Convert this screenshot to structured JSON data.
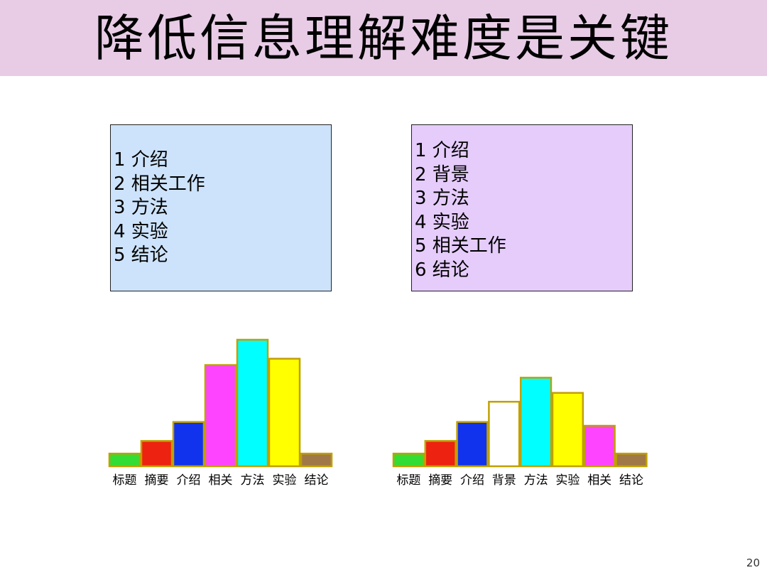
{
  "slide": {
    "title": "降低信息理解难度是关键",
    "title_bg": "#e8cce6",
    "page_number": "20"
  },
  "left_box": {
    "bg": "#cde3fb",
    "items": [
      "1 介绍",
      "2 相关工作",
      "3 方法",
      "4 实验",
      "5 结论"
    ]
  },
  "right_box": {
    "bg": "#e5ccfb",
    "items": [
      "1 介绍",
      "2 背景",
      "3 方法",
      "4 实验",
      "5 相关工作",
      "6 结论"
    ]
  },
  "chart_data": [
    {
      "type": "bar",
      "categories": [
        "标题",
        "摘要",
        "介绍",
        "相关",
        "方法",
        "实验",
        "结论"
      ],
      "values": [
        1,
        2,
        3.5,
        8,
        10,
        8.5,
        1
      ],
      "colors": [
        "#33dd33",
        "#ee2211",
        "#1133ee",
        "#ff44ff",
        "#00ffff",
        "#ffff00",
        "#a07848"
      ],
      "edge_color": "#c0a000",
      "ylim": [
        0,
        10
      ],
      "grid": false,
      "title": "",
      "xlabel": "",
      "ylabel": ""
    },
    {
      "type": "bar",
      "categories": [
        "标题",
        "摘要",
        "介绍",
        "背景",
        "方法",
        "实验",
        "相关",
        "结论"
      ],
      "values": [
        1,
        2,
        3.5,
        5.1,
        7,
        5.8,
        3.2,
        1
      ],
      "colors": [
        "#33dd33",
        "#ee2211",
        "#1133ee",
        "#ffffff",
        "#00ffff",
        "#ffff00",
        "#ff44ff",
        "#a07848"
      ],
      "edge_color": "#c0a000",
      "ylim": [
        0,
        10
      ],
      "grid": false,
      "title": "",
      "xlabel": "",
      "ylabel": ""
    }
  ]
}
